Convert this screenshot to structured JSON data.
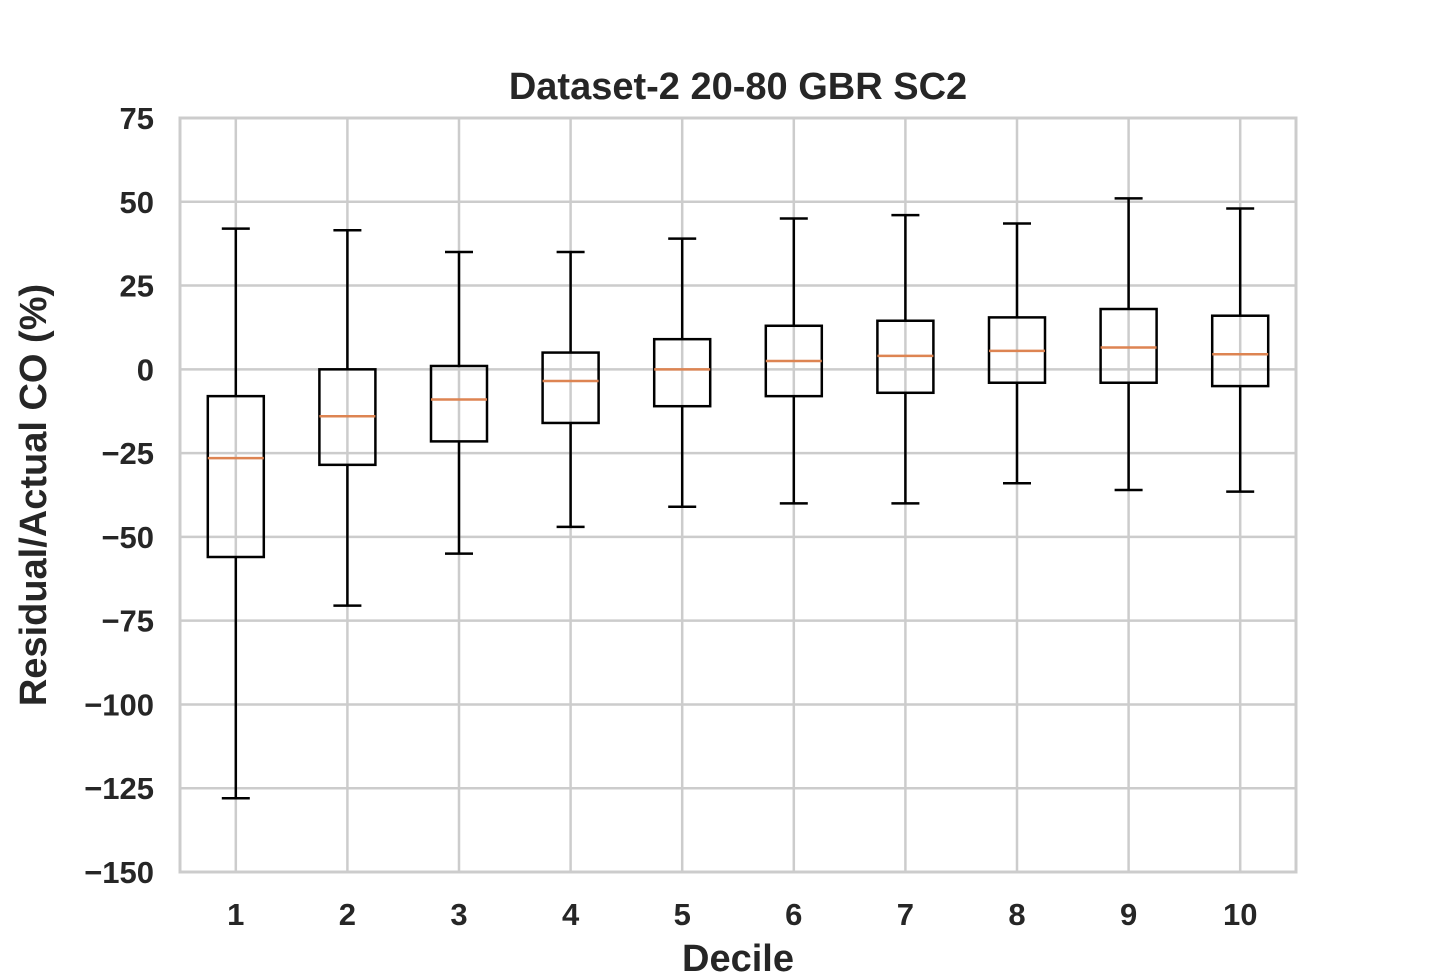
{
  "chart_data": {
    "type": "box",
    "title": "Dataset-2 20-80 GBR SC2",
    "xlabel": "Decile",
    "ylabel": "Residual/Actual CO (%)",
    "ylim": [
      -150,
      75
    ],
    "yticks": [
      75,
      50,
      25,
      0,
      -25,
      -50,
      -75,
      -100,
      -125,
      -150
    ],
    "ytick_labels": [
      "75",
      "50",
      "25",
      "0",
      "−25",
      "−50",
      "−75",
      "−100",
      "−125",
      "−150"
    ],
    "categories": [
      "1",
      "2",
      "3",
      "4",
      "5",
      "6",
      "7",
      "8",
      "9",
      "10"
    ],
    "grid": true,
    "colors": {
      "box": "#000000",
      "median": "#dd8452",
      "grid": "#cccccc",
      "text": "#262626"
    },
    "boxes": [
      {
        "whisker_low": -128,
        "q1": -56,
        "median": -26.5,
        "q3": -8,
        "whisker_high": 42
      },
      {
        "whisker_low": -70.5,
        "q1": -28.5,
        "median": -14,
        "q3": 0,
        "whisker_high": 41.5
      },
      {
        "whisker_low": -55,
        "q1": -21.5,
        "median": -9,
        "q3": 1,
        "whisker_high": 35
      },
      {
        "whisker_low": -47,
        "q1": -16,
        "median": -3.5,
        "q3": 5,
        "whisker_high": 35
      },
      {
        "whisker_low": -41,
        "q1": -11,
        "median": 0,
        "q3": 9,
        "whisker_high": 39
      },
      {
        "whisker_low": -40,
        "q1": -8,
        "median": 2.5,
        "q3": 13,
        "whisker_high": 45
      },
      {
        "whisker_low": -40,
        "q1": -7,
        "median": 4,
        "q3": 14.5,
        "whisker_high": 46
      },
      {
        "whisker_low": -34,
        "q1": -4,
        "median": 5.5,
        "q3": 15.5,
        "whisker_high": 43.5
      },
      {
        "whisker_low": -36,
        "q1": -4,
        "median": 6.5,
        "q3": 18,
        "whisker_high": 51
      },
      {
        "whisker_low": -36.5,
        "q1": -5,
        "median": 4.5,
        "q3": 16,
        "whisker_high": 48
      }
    ]
  }
}
